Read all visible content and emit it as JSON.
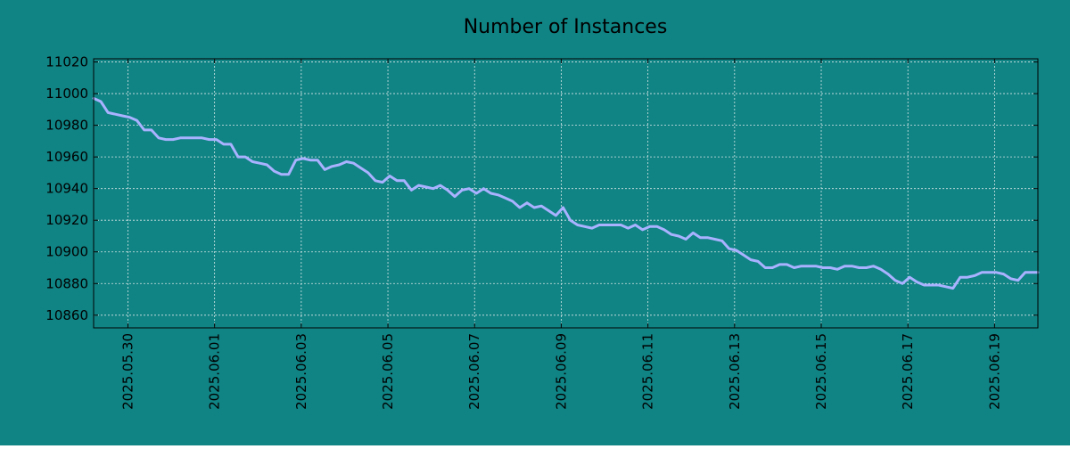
{
  "chart_data": {
    "type": "line",
    "title": "Number of Instances",
    "xlabel": "",
    "ylabel": "",
    "x_type": "date",
    "xlim": [
      "2025-05-29 05:00",
      "2025-06-20 00:00"
    ],
    "ylim": [
      10852,
      11022
    ],
    "yticks": [
      10860,
      10880,
      10900,
      10920,
      10940,
      10960,
      10980,
      11000,
      11020
    ],
    "xticks": [
      "2025.05.30",
      "2025.06.01",
      "2025.06.03",
      "2025.06.05",
      "2025.06.07",
      "2025.06.09",
      "2025.06.11",
      "2025.06.13",
      "2025.06.15",
      "2025.06.17",
      "2025.06.19"
    ],
    "grid": true,
    "legend": "none",
    "colors": {
      "background": "#108384",
      "line": "#a9b2ff",
      "axis": "#000000",
      "grid": "#d8e8e8"
    },
    "series": [
      {
        "x": [
          "2025-05-29 05:00",
          "2025-05-29 09:00",
          "2025-05-29 13:00",
          "2025-05-29 17:00",
          "2025-05-29 21:00",
          "2025-05-30 01:00",
          "2025-05-30 05:00",
          "2025-05-30 09:00",
          "2025-05-30 13:00",
          "2025-05-30 17:00",
          "2025-05-30 21:00",
          "2025-05-31 01:00",
          "2025-05-31 05:00",
          "2025-05-31 09:00",
          "2025-05-31 13:00",
          "2025-05-31 17:00",
          "2025-05-31 21:00",
          "2025-06-01 01:00",
          "2025-06-01 05:00",
          "2025-06-01 09:00",
          "2025-06-01 13:00",
          "2025-06-01 17:00",
          "2025-06-01 21:00",
          "2025-06-02 01:00",
          "2025-06-02 05:00",
          "2025-06-02 09:00",
          "2025-06-02 13:00",
          "2025-06-02 17:00",
          "2025-06-02 21:00",
          "2025-06-03 01:00",
          "2025-06-03 05:00",
          "2025-06-03 09:00",
          "2025-06-03 13:00",
          "2025-06-03 17:00",
          "2025-06-03 21:00",
          "2025-06-04 01:00",
          "2025-06-04 05:00",
          "2025-06-04 09:00",
          "2025-06-04 13:00",
          "2025-06-04 17:00",
          "2025-06-04 21:00",
          "2025-06-05 01:00",
          "2025-06-05 05:00",
          "2025-06-05 09:00",
          "2025-06-05 13:00",
          "2025-06-05 17:00",
          "2025-06-05 21:00",
          "2025-06-06 01:00",
          "2025-06-06 05:00",
          "2025-06-06 09:00",
          "2025-06-06 13:00",
          "2025-06-06 17:00",
          "2025-06-06 21:00",
          "2025-06-07 01:00",
          "2025-06-07 05:00",
          "2025-06-07 09:00",
          "2025-06-07 13:00",
          "2025-06-07 17:00",
          "2025-06-07 21:00",
          "2025-06-08 01:00",
          "2025-06-08 05:00",
          "2025-06-08 09:00",
          "2025-06-08 13:00",
          "2025-06-08 17:00",
          "2025-06-08 21:00",
          "2025-06-09 01:00",
          "2025-06-09 05:00",
          "2025-06-09 09:00",
          "2025-06-09 13:00",
          "2025-06-09 17:00",
          "2025-06-09 21:00",
          "2025-06-10 01:00",
          "2025-06-10 05:00",
          "2025-06-10 09:00",
          "2025-06-10 13:00",
          "2025-06-10 17:00",
          "2025-06-10 21:00",
          "2025-06-11 01:00",
          "2025-06-11 05:00",
          "2025-06-11 09:00",
          "2025-06-11 13:00",
          "2025-06-11 17:00",
          "2025-06-11 21:00",
          "2025-06-12 01:00",
          "2025-06-12 05:00",
          "2025-06-12 09:00",
          "2025-06-12 13:00",
          "2025-06-12 17:00",
          "2025-06-12 21:00",
          "2025-06-13 01:00",
          "2025-06-13 05:00",
          "2025-06-13 09:00",
          "2025-06-13 13:00",
          "2025-06-13 17:00",
          "2025-06-13 21:00",
          "2025-06-14 01:00",
          "2025-06-14 05:00",
          "2025-06-14 09:00",
          "2025-06-14 13:00",
          "2025-06-14 17:00",
          "2025-06-14 21:00",
          "2025-06-15 01:00",
          "2025-06-15 05:00",
          "2025-06-15 09:00",
          "2025-06-15 13:00",
          "2025-06-15 17:00",
          "2025-06-15 21:00",
          "2025-06-16 01:00",
          "2025-06-16 05:00",
          "2025-06-16 09:00",
          "2025-06-16 13:00",
          "2025-06-16 17:00",
          "2025-06-16 21:00",
          "2025-06-17 01:00",
          "2025-06-17 05:00",
          "2025-06-17 09:00",
          "2025-06-17 13:00",
          "2025-06-17 17:00",
          "2025-06-17 21:00",
          "2025-06-18 01:00",
          "2025-06-18 05:00",
          "2025-06-18 09:00",
          "2025-06-18 13:00",
          "2025-06-18 17:00",
          "2025-06-18 21:00",
          "2025-06-19 01:00",
          "2025-06-19 05:00",
          "2025-06-19 09:00",
          "2025-06-19 13:00",
          "2025-06-19 17:00",
          "2025-06-19 21:00",
          "2025-06-20 00:00"
        ],
        "y": [
          10997,
          10995,
          10988,
          10987,
          10986,
          10985,
          10983,
          10977,
          10977,
          10972,
          10971,
          10971,
          10972,
          10972,
          10972,
          10972,
          10971,
          10971,
          10968,
          10968,
          10960,
          10960,
          10957,
          10956,
          10955,
          10951,
          10949,
          10949,
          10958,
          10959,
          10958,
          10958,
          10952,
          10954,
          10955,
          10957,
          10956,
          10953,
          10950,
          10945,
          10944,
          10948,
          10945,
          10945,
          10939,
          10942,
          10941,
          10940,
          10942,
          10939,
          10935,
          10939,
          10940,
          10937,
          10940,
          10937,
          10936,
          10934,
          10932,
          10928,
          10931,
          10928,
          10929,
          10926,
          10923,
          10928,
          10920,
          10917,
          10916,
          10915,
          10917,
          10917,
          10917,
          10917,
          10915,
          10917,
          10914,
          10916,
          10916,
          10914,
          10911,
          10910,
          10908,
          10912,
          10909,
          10909,
          10908,
          10907,
          10902,
          10901,
          10898,
          10895,
          10894,
          10890,
          10890,
          10892,
          10892,
          10890,
          10891,
          10891,
          10891,
          10890,
          10890,
          10889,
          10891,
          10891,
          10890,
          10890,
          10891,
          10889,
          10886,
          10882,
          10880,
          10884,
          10881,
          10879,
          10879,
          10879,
          10878,
          10877,
          10884,
          10884,
          10885,
          10887,
          10887,
          10887,
          10886,
          10883,
          10882,
          10887,
          10887,
          10887
        ]
      }
    ]
  }
}
